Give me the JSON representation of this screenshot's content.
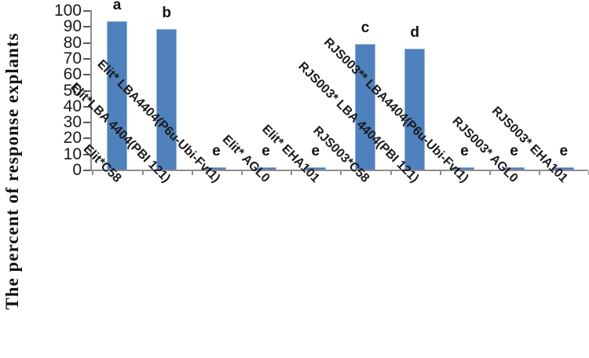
{
  "chart_data": {
    "type": "bar",
    "title": "",
    "xlabel": "",
    "ylabel": "The percent of response explants",
    "ylim": [
      0,
      100
    ],
    "ytick_step": 10,
    "ytick_labels": [
      "0",
      "10",
      "20",
      "30",
      "40",
      "50",
      "60",
      "70",
      "80",
      "90",
      "100"
    ],
    "grid": false,
    "legend": null,
    "categories": [
      "Elit*C58",
      "Elit*LBA 4404(PBI 121)",
      "Elit*  LBA4404(P6u-Ubi-Fvt1)",
      "Elit* AGL0",
      "Elit* EHA101",
      "RJS003*C58",
      "RJS003* LBA 4404(PBI 121)",
      "RJS003**  LBA4404(P6u-Ubi-Fvt1)",
      "RJS003* AGL0",
      "RJS003* EHA101"
    ],
    "values": [
      93,
      88,
      1,
      1,
      1,
      79,
      76,
      1,
      1,
      1
    ],
    "bar_labels": [
      "a",
      "b",
      "e",
      "e",
      "e",
      "c",
      "d",
      "e",
      "e",
      "e"
    ],
    "colors": {
      "bar_fill": "#4f81bd",
      "bar_border": "#95b3d7",
      "axis": "#8e8e8e",
      "tick": "#5a5a5a",
      "text": "#1a1a1a"
    }
  }
}
